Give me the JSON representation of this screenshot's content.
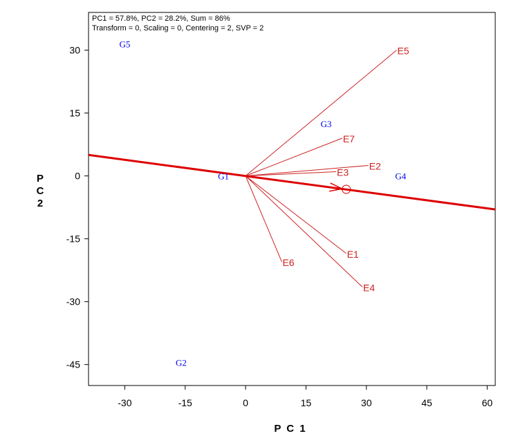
{
  "header": {
    "line1": "PC1 = 57.8%, PC2 = 28.2%, Sum = 86%",
    "line2": "Transform = 0, Scaling = 0, Centering = 2, SVP = 2"
  },
  "chart_data": {
    "type": "scatter",
    "title": "",
    "xlabel": "P C 1",
    "ylabel": "P C 2",
    "xlim": [
      -39,
      62
    ],
    "ylim": [
      -50,
      39
    ],
    "x_ticks": [
      -30,
      -15,
      0,
      15,
      30,
      45,
      60
    ],
    "y_ticks": [
      30,
      15,
      0,
      -15,
      -30,
      -45
    ],
    "x_tick_labels": [
      "-30",
      "-15",
      "0",
      "15",
      "30",
      "45",
      "60"
    ],
    "y_tick_labels": [
      "30",
      "15",
      "0",
      "-15",
      "-30",
      "-45"
    ],
    "grid": false,
    "genotypes": [
      {
        "label": "G1",
        "x": -5.5,
        "y": 0
      },
      {
        "label": "G2",
        "x": -16,
        "y": -44.5
      },
      {
        "label": "G3",
        "x": 20,
        "y": 12.5
      },
      {
        "label": "G4",
        "x": 38.5,
        "y": 0
      },
      {
        "label": "G5",
        "x": -30,
        "y": 31.5
      }
    ],
    "environments": [
      {
        "label": "E1",
        "x": 25,
        "y": -18.5
      },
      {
        "label": "E2",
        "x": 30.5,
        "y": 2.5
      },
      {
        "label": "E3",
        "x": 22.5,
        "y": 1
      },
      {
        "label": "E4",
        "x": 29,
        "y": -26.5
      },
      {
        "label": "E5",
        "x": 37.5,
        "y": 30
      },
      {
        "label": "E6",
        "x": 9,
        "y": -20.5
      },
      {
        "label": "E7",
        "x": 24,
        "y": 9
      }
    ],
    "average_environment_axis": {
      "start": {
        "x": -39,
        "y": 5
      },
      "end": {
        "x": 62,
        "y": -8
      },
      "average_environment": {
        "x": 25,
        "y": -3.2
      }
    },
    "colors": {
      "genotype": "#0000ee",
      "environment": "#cc2222",
      "axis_line": "#dd0000"
    }
  }
}
